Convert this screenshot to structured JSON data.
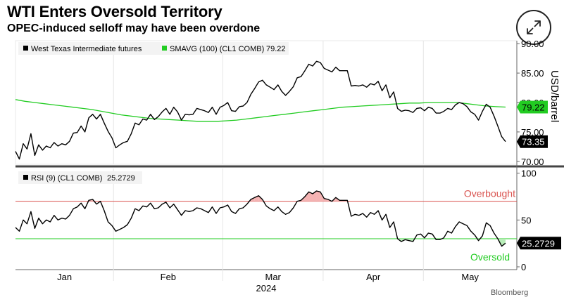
{
  "header": {
    "title": "WTI Enters Oversold Territory",
    "subtitle": "OPEC-induced selloff may have been overdone",
    "expand_icon": "expand-arrows-icon",
    "credit": "Bloomberg"
  },
  "chart_data": [
    {
      "type": "line",
      "panel": "price",
      "ylabel": "USD/barrel",
      "ylim": [
        69.5,
        90.5
      ],
      "yticks": [
        "70.00",
        "75.00",
        "80.00",
        "85.00",
        "90.00"
      ],
      "axis_side": "right",
      "x_labels": [
        "Jan",
        "Feb",
        "Mar",
        "Apr",
        "May"
      ],
      "x_year": "2024",
      "legend_position": "top-left",
      "series": [
        {
          "name": "West Texas Intermediate futures",
          "color": "#000000",
          "last_value": "73.35",
          "values": [
            71.7,
            70.4,
            73.0,
            72.1,
            74.7,
            71.0,
            72.8,
            71.9,
            72.6,
            72.3,
            73.2,
            72.6,
            73.0,
            72.8,
            73.4,
            74.8,
            74.9,
            76.0,
            75.0,
            77.4,
            78.0,
            77.2,
            78.0,
            76.5,
            75.1,
            74.0,
            72.3,
            72.8,
            73.2,
            73.4,
            74.7,
            76.5,
            76.2,
            77.2,
            77.0,
            78.0,
            77.1,
            77.6,
            78.4,
            79.0,
            78.0,
            79.2,
            78.4,
            77.0,
            78.0,
            77.9,
            78.0,
            79.0,
            78.8,
            78.6,
            78.3,
            79.2,
            78.0,
            79.2,
            79.5,
            80.0,
            78.6,
            78.5,
            79.3,
            79.4,
            80.0,
            81.4,
            82.4,
            83.5,
            83.8,
            83.0,
            82.6,
            82.2,
            83.0,
            81.9,
            81.2,
            81.9,
            82.7,
            84.2,
            84.4,
            85.4,
            86.5,
            86.2,
            87.0,
            86.8,
            85.8,
            85.5,
            85.2,
            86.0,
            85.4,
            85.4,
            85.4,
            82.8,
            82.9,
            82.8,
            83.0,
            82.6,
            83.2,
            83.0,
            83.6,
            82.0,
            83.0,
            80.8,
            81.8,
            79.0,
            78.5,
            78.7,
            78.6,
            78.3,
            79.0,
            79.1,
            78.6,
            79.2,
            79.0,
            78.2,
            78.2,
            78.5,
            79.0,
            78.8,
            79.6,
            80.0,
            79.8,
            79.3,
            78.4,
            78.0,
            77.0,
            78.5,
            79.7,
            79.2,
            77.7,
            76.0,
            74.2,
            73.35
          ]
        },
        {
          "name": "SMAVG (100) (CL1 COMB)",
          "color": "#22cc22",
          "last_value": "79.22",
          "values": [
            80.5,
            80.2,
            80.0,
            79.8,
            79.6,
            79.4,
            79.2,
            79.0,
            78.8,
            78.5,
            78.2,
            77.9,
            77.7,
            77.5,
            77.3,
            77.2,
            77.1,
            77.0,
            76.9,
            76.8,
            76.8,
            76.8,
            76.9,
            77.0,
            77.2,
            77.4,
            77.6,
            77.8,
            78.0,
            78.2,
            78.4,
            78.6,
            78.8,
            79.0,
            79.2,
            79.3,
            79.4,
            79.5,
            79.6,
            79.7,
            79.8,
            79.9,
            79.9,
            80.0,
            80.0,
            80.0,
            80.0,
            79.8,
            79.6,
            79.4,
            79.3,
            79.22
          ]
        }
      ],
      "legend_value": "79.22"
    },
    {
      "type": "line",
      "panel": "rsi",
      "ylim": [
        -3,
        105
      ],
      "yticks": [
        "100",
        "50",
        "0"
      ],
      "axis_side": "right",
      "thresholds": [
        {
          "value": 70,
          "label": "Overbought",
          "color": "#d9534f",
          "fill": "#f4b3b3"
        },
        {
          "value": 30,
          "label": "Oversold",
          "color": "#22cc22",
          "fill": "#b8edb8"
        }
      ],
      "series": [
        {
          "name": "RSI (9) (CL1 COMB)",
          "color": "#000000",
          "last_value": "25.2729",
          "values": [
            42,
            38,
            50,
            46,
            59,
            41,
            52,
            46,
            50,
            48,
            55,
            50,
            52,
            51,
            55,
            62,
            64,
            68,
            62,
            71,
            72,
            67,
            70,
            60,
            48,
            44,
            38,
            40,
            42,
            45,
            52,
            62,
            60,
            65,
            64,
            68,
            62,
            63,
            67,
            69,
            63,
            67,
            61,
            55,
            60,
            59,
            60,
            63,
            62,
            60,
            58,
            64,
            57,
            63,
            64,
            66,
            59,
            57,
            62,
            63,
            67,
            72,
            74,
            76,
            72,
            65,
            62,
            60,
            64,
            59,
            56,
            58,
            63,
            70,
            71,
            75,
            80,
            78,
            81,
            80,
            73,
            72,
            70,
            74,
            71,
            71,
            71,
            54,
            56,
            55,
            57,
            53,
            58,
            56,
            60,
            50,
            56,
            42,
            48,
            30,
            27,
            29,
            28,
            27,
            34,
            35,
            31,
            36,
            35,
            29,
            29,
            31,
            38,
            36,
            43,
            48,
            46,
            44,
            38,
            34,
            28,
            33,
            47,
            44,
            36,
            30,
            22,
            25.27
          ]
        }
      ],
      "legend_value": "25.2729"
    }
  ]
}
